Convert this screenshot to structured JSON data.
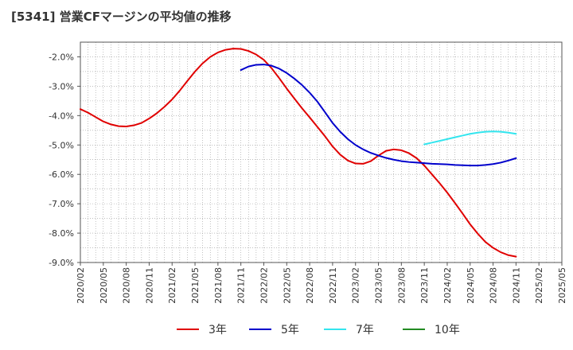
{
  "title": "[5341]  営業CFマージンの平均値の推移",
  "colors": {
    "3年": "#e00000",
    "5年": "#0000cc",
    "7年": "#33e5ee",
    "10年": "#228b22"
  },
  "chart_data": {
    "type": "line",
    "x": [
      "2020/02",
      "2020/05",
      "2020/08",
      "2020/11",
      "2021/02",
      "2021/05",
      "2021/08",
      "2021/11",
      "2022/02",
      "2022/05",
      "2022/08",
      "2022/11",
      "2023/02",
      "2023/05",
      "2023/08",
      "2023/11",
      "2024/02",
      "2024/05",
      "2024/08",
      "2024/11",
      "2025/02",
      "2025/05"
    ],
    "ylim": [
      -9.0,
      -1.5
    ],
    "yticks": [
      "-2.0%",
      "-3.0%",
      "-4.0%",
      "-5.0%",
      "-6.0%",
      "-7.0%",
      "-8.0%",
      "-9.0%"
    ],
    "ytick_values": [
      -2.0,
      -3.0,
      -4.0,
      -5.0,
      -6.0,
      -7.0,
      -8.0,
      -9.0
    ],
    "grid": true,
    "legend_position": "bottom",
    "series": [
      {
        "name": "3年",
        "color": "#e00000",
        "points": [
          [
            "2020/02",
            -3.78
          ],
          [
            "2020/03",
            -3.9
          ],
          [
            "2020/04",
            -4.05
          ],
          [
            "2020/05",
            -4.2
          ],
          [
            "2020/06",
            -4.3
          ],
          [
            "2020/07",
            -4.36
          ],
          [
            "2020/08",
            -4.37
          ],
          [
            "2020/09",
            -4.33
          ],
          [
            "2020/10",
            -4.25
          ],
          [
            "2020/11",
            -4.1
          ],
          [
            "2020/12",
            -3.92
          ],
          [
            "2021/01",
            -3.7
          ],
          [
            "2021/02",
            -3.45
          ],
          [
            "2021/03",
            -3.15
          ],
          [
            "2021/04",
            -2.82
          ],
          [
            "2021/05",
            -2.5
          ],
          [
            "2021/06",
            -2.22
          ],
          [
            "2021/07",
            -2.0
          ],
          [
            "2021/08",
            -1.85
          ],
          [
            "2021/09",
            -1.76
          ],
          [
            "2021/10",
            -1.72
          ],
          [
            "2021/11",
            -1.73
          ],
          [
            "2021/12",
            -1.8
          ],
          [
            "2022/01",
            -1.92
          ],
          [
            "2022/02",
            -2.1
          ],
          [
            "2022/03",
            -2.38
          ],
          [
            "2022/04",
            -2.72
          ],
          [
            "2022/05",
            -3.08
          ],
          [
            "2022/06",
            -3.42
          ],
          [
            "2022/07",
            -3.75
          ],
          [
            "2022/08",
            -4.06
          ],
          [
            "2022/09",
            -4.38
          ],
          [
            "2022/10",
            -4.7
          ],
          [
            "2022/11",
            -5.05
          ],
          [
            "2022/12",
            -5.33
          ],
          [
            "2023/01",
            -5.53
          ],
          [
            "2023/02",
            -5.63
          ],
          [
            "2023/03",
            -5.64
          ],
          [
            "2023/04",
            -5.55
          ],
          [
            "2023/05",
            -5.36
          ],
          [
            "2023/06",
            -5.2
          ],
          [
            "2023/07",
            -5.15
          ],
          [
            "2023/08",
            -5.18
          ],
          [
            "2023/09",
            -5.28
          ],
          [
            "2023/10",
            -5.45
          ],
          [
            "2023/11",
            -5.7
          ],
          [
            "2023/12",
            -6.0
          ],
          [
            "2024/01",
            -6.3
          ],
          [
            "2024/02",
            -6.62
          ],
          [
            "2024/03",
            -6.97
          ],
          [
            "2024/04",
            -7.33
          ],
          [
            "2024/05",
            -7.7
          ],
          [
            "2024/06",
            -8.02
          ],
          [
            "2024/07",
            -8.3
          ],
          [
            "2024/08",
            -8.5
          ],
          [
            "2024/09",
            -8.65
          ],
          [
            "2024/10",
            -8.75
          ],
          [
            "2024/11",
            -8.8
          ]
        ]
      },
      {
        "name": "5年",
        "color": "#0000cc",
        "points": [
          [
            "2021/11",
            -2.45
          ],
          [
            "2021/12",
            -2.33
          ],
          [
            "2022/01",
            -2.27
          ],
          [
            "2022/02",
            -2.26
          ],
          [
            "2022/03",
            -2.3
          ],
          [
            "2022/04",
            -2.4
          ],
          [
            "2022/05",
            -2.55
          ],
          [
            "2022/06",
            -2.74
          ],
          [
            "2022/07",
            -2.96
          ],
          [
            "2022/08",
            -3.22
          ],
          [
            "2022/09",
            -3.52
          ],
          [
            "2022/10",
            -3.88
          ],
          [
            "2022/11",
            -4.25
          ],
          [
            "2022/12",
            -4.55
          ],
          [
            "2023/01",
            -4.8
          ],
          [
            "2023/02",
            -5.0
          ],
          [
            "2023/03",
            -5.15
          ],
          [
            "2023/04",
            -5.27
          ],
          [
            "2023/05",
            -5.36
          ],
          [
            "2023/06",
            -5.44
          ],
          [
            "2023/07",
            -5.5
          ],
          [
            "2023/08",
            -5.55
          ],
          [
            "2023/09",
            -5.58
          ],
          [
            "2023/10",
            -5.6
          ],
          [
            "2023/11",
            -5.62
          ],
          [
            "2023/12",
            -5.64
          ],
          [
            "2024/01",
            -5.65
          ],
          [
            "2024/02",
            -5.66
          ],
          [
            "2024/03",
            -5.68
          ],
          [
            "2024/04",
            -5.69
          ],
          [
            "2024/05",
            -5.7
          ],
          [
            "2024/06",
            -5.7
          ],
          [
            "2024/07",
            -5.68
          ],
          [
            "2024/08",
            -5.65
          ],
          [
            "2024/09",
            -5.6
          ],
          [
            "2024/10",
            -5.53
          ],
          [
            "2024/11",
            -5.45
          ]
        ]
      },
      {
        "name": "7年",
        "color": "#33e5ee",
        "points": [
          [
            "2023/11",
            -4.98
          ],
          [
            "2023/12",
            -4.92
          ],
          [
            "2024/01",
            -4.86
          ],
          [
            "2024/02",
            -4.8
          ],
          [
            "2024/03",
            -4.74
          ],
          [
            "2024/04",
            -4.68
          ],
          [
            "2024/05",
            -4.62
          ],
          [
            "2024/06",
            -4.58
          ],
          [
            "2024/07",
            -4.55
          ],
          [
            "2024/08",
            -4.54
          ],
          [
            "2024/09",
            -4.55
          ],
          [
            "2024/10",
            -4.58
          ],
          [
            "2024/11",
            -4.62
          ]
        ]
      },
      {
        "name": "10年",
        "color": "#228b22",
        "points": []
      }
    ]
  }
}
